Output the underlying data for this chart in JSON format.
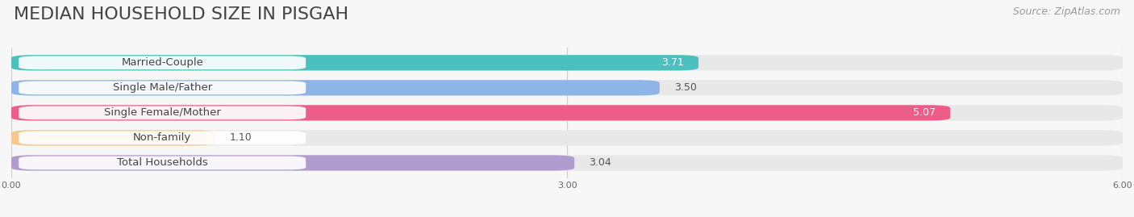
{
  "title": "MEDIAN HOUSEHOLD SIZE IN PISGAH",
  "source": "Source: ZipAtlas.com",
  "categories": [
    "Married-Couple",
    "Single Male/Father",
    "Single Female/Mother",
    "Non-family",
    "Total Households"
  ],
  "values": [
    3.71,
    3.5,
    5.07,
    1.1,
    3.04
  ],
  "bar_colors": [
    "#4CBFBF",
    "#8EB4E8",
    "#EE5C8A",
    "#F5C98A",
    "#B09CCF"
  ],
  "bar_bg_color": "#E8E8E8",
  "xlim": [
    0,
    6.0
  ],
  "xticks": [
    0.0,
    3.0,
    6.0
  ],
  "xtick_labels": [
    "0.00",
    "3.00",
    "6.00"
  ],
  "title_fontsize": 16,
  "source_fontsize": 9,
  "label_fontsize": 9.5,
  "value_fontsize": 9,
  "value_colors": [
    "white",
    "black",
    "white",
    "black",
    "black"
  ],
  "background_color": "#F7F7F7"
}
